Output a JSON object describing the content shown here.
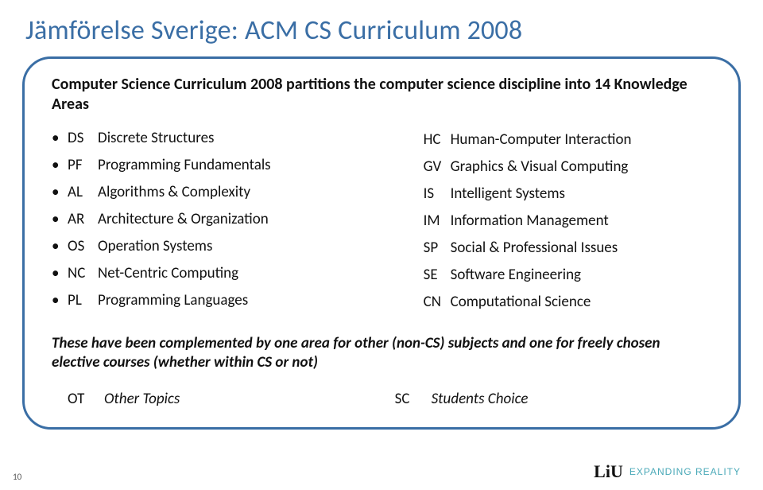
{
  "title": "Jämförelse Sverige: ACM CS Curriculum 2008",
  "intro": "Computer Science Curriculum 2008 partitions the computer science discipline into 14 Knowledge Areas",
  "left": [
    {
      "code": "DS",
      "desc": "Discrete Structures"
    },
    {
      "code": "PF",
      "desc": "Programming Fundamentals"
    },
    {
      "code": "AL",
      "desc": "Algorithms & Complexity"
    },
    {
      "code": "AR",
      "desc": "Architecture & Organization"
    },
    {
      "code": "OS",
      "desc": "Operation Systems"
    },
    {
      "code": "NC",
      "desc": "Net-Centric Computing"
    },
    {
      "code": "PL",
      "desc": "Programming Languages"
    }
  ],
  "right": [
    {
      "code": "HC",
      "desc": "Human-Computer Interaction"
    },
    {
      "code": "GV",
      "desc": "Graphics & Visual Computing"
    },
    {
      "code": "IS",
      "desc": "Intelligent Systems"
    },
    {
      "code": "IM",
      "desc": "Information Management"
    },
    {
      "code": "SP",
      "desc": "Social & Professional Issues"
    },
    {
      "code": "SE",
      "desc": "Software Engineering"
    },
    {
      "code": "CN",
      "desc": "Computational Science"
    }
  ],
  "footnote": "These have been complemented by one area for other (non-CS) subjects and one for freely chosen elective courses (whether within CS or not)",
  "bottomLeft": {
    "code": "OT",
    "desc": "Other Topics"
  },
  "bottomRight": {
    "code": "SC",
    "desc": "Students Choice"
  },
  "logo": {
    "liu": "LiU",
    "er": "EXPANDING REALITY"
  },
  "pageNum": "10",
  "colors": {
    "titleColor": "#3a6ea5",
    "borderColor": "#3a6ea5",
    "textColor": "#111111",
    "erColor": "#4aa9b8",
    "background": "#ffffff"
  }
}
